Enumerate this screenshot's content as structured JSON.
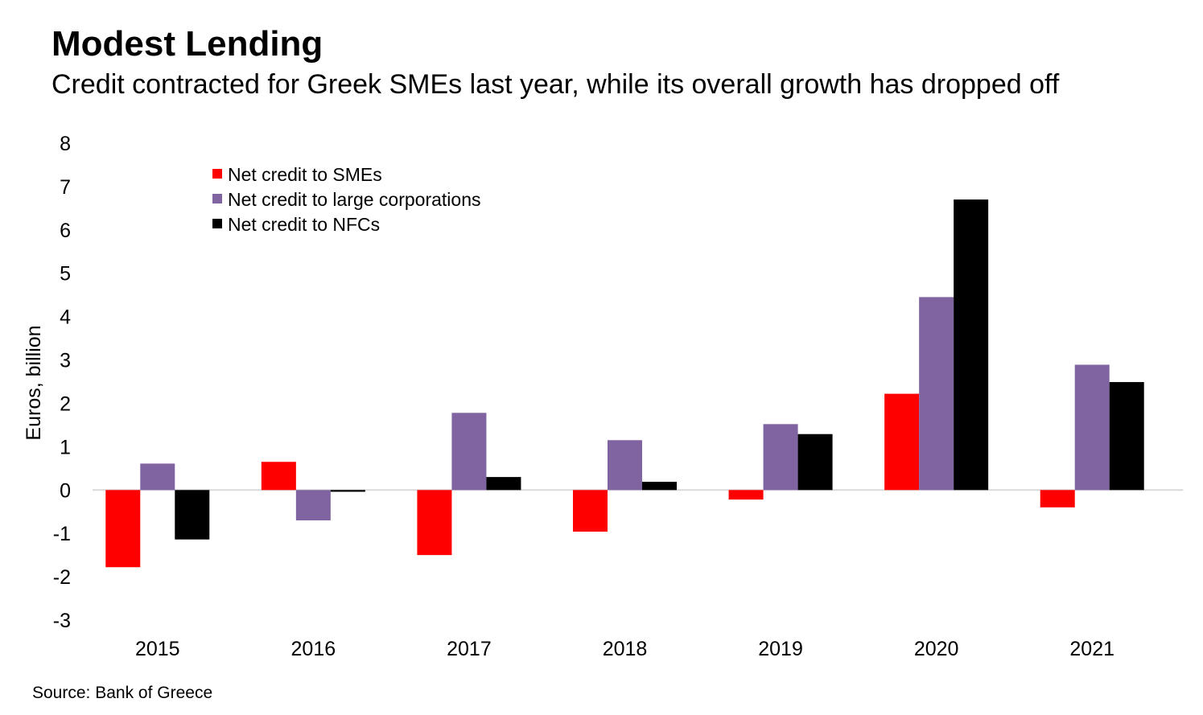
{
  "title": "Modest Lending",
  "subtitle": "Credit contracted for Greek SMEs last year, while its overall growth has dropped off",
  "source": "Source: Bank of Greece",
  "chart_data": {
    "type": "bar",
    "title": "Modest Lending",
    "subtitle": "Credit contracted for Greek SMEs last year, while its overall growth has dropped off",
    "ylabel": "Euros, billion",
    "xlabel": "",
    "categories": [
      "2015",
      "2016",
      "2017",
      "2018",
      "2019",
      "2020",
      "2021"
    ],
    "ylim": [
      -3,
      8
    ],
    "yticks": [
      "8",
      "7",
      "6",
      "5",
      "4",
      "3",
      "2",
      "1",
      "0",
      "-1",
      "-2",
      "-3"
    ],
    "grid": false,
    "legend_position": "top-left",
    "series": [
      {
        "name": "Net credit to SMEs",
        "color": "#ff0000",
        "values": [
          -1.78,
          0.65,
          -1.5,
          -0.96,
          -0.22,
          2.22,
          -0.4
        ]
      },
      {
        "name": "Net credit to large corporations",
        "color": "#8064a2",
        "values": [
          0.61,
          -0.7,
          1.78,
          1.15,
          1.52,
          4.45,
          2.89
        ]
      },
      {
        "name": "Net credit to NFCs",
        "color": "#000000",
        "values": [
          -1.14,
          -0.04,
          0.3,
          0.19,
          1.29,
          6.7,
          2.49
        ]
      }
    ]
  }
}
